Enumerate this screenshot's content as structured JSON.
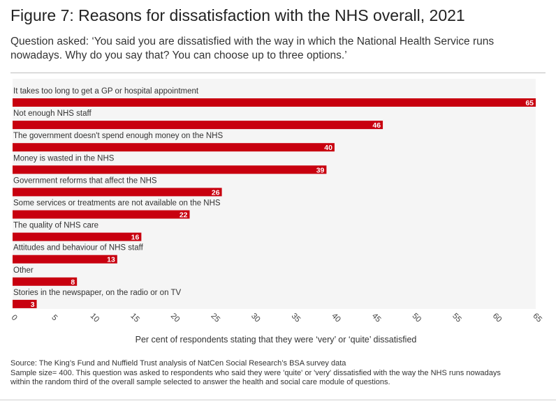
{
  "header": {
    "title": "Figure 7: Reasons for dissatisfaction with the NHS overall, 2021",
    "subtitle_line1": "Question asked: ‘You said you are dissatisfied with the way in which the National Health Service runs",
    "subtitle_line2": "nowadays. Why do you say that? You can choose up to three options.’"
  },
  "footer": {
    "source": "Source: The King’s Fund and Nuffield Trust analysis of NatCen Social Research’s BSA survey data",
    "note_line1": "Sample size= 400. This question was asked to respondents who said they were 'quite' or 'very' dissatisfied with the way the NHS runs nowadays",
    "note_line2": "within the random third of the overall sample selected to answer the health and social care module of questions."
  },
  "colors": {
    "bar": "#c8000f",
    "plot_background": "#f5f5f5",
    "value_label": "#ffffff"
  },
  "chart_data": {
    "type": "bar",
    "orientation": "horizontal",
    "title": "Figure 7: Reasons for dissatisfaction with the NHS overall, 2021",
    "xlabel": "Per cent of respondents stating that they were ‘very’ or ‘quite’ dissatisfied",
    "ylabel": "",
    "xlim": [
      0,
      65
    ],
    "xticks": [
      "0",
      "5",
      "10",
      "15",
      "20",
      "25",
      "30",
      "35",
      "40",
      "45",
      "50",
      "55",
      "60",
      "65"
    ],
    "grid": false,
    "categories": [
      "It takes too long to get a GP or hospital appointment",
      "Not enough NHS staff",
      "The government doesn't spend enough money on the NHS",
      "Money is wasted in the NHS",
      "Government reforms that affect the NHS",
      "Some services or treatments are not available on the NHS",
      "The quality of NHS care",
      "Attitudes and behaviour of NHS staff",
      "Other",
      "Stories in the newspaper, on the radio or on TV"
    ],
    "values": [
      65,
      46,
      40,
      39,
      26,
      22,
      16,
      13,
      8,
      3
    ]
  }
}
